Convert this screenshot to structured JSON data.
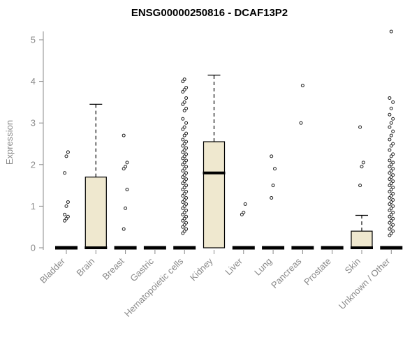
{
  "chart_data": {
    "type": "boxplot",
    "title": "ENSG00000250816 - DCAF13P2",
    "ylabel": "Expression",
    "ylim": [
      0,
      5.3
    ],
    "yticks": [
      0,
      1,
      2,
      3,
      4,
      5
    ],
    "box_fill": "#EFE8CF",
    "axis_color": "#888888",
    "label_color": "#8a8a8a",
    "categories": [
      "Bladder",
      "Brain",
      "Breast",
      "Gastric",
      "Hematopoietic cells",
      "Kidney",
      "Liver",
      "Lung",
      "Pancreas",
      "Prostate",
      "Skin",
      "Unknown / Other"
    ],
    "boxes": [
      {
        "label": "Bladder",
        "q1": 0,
        "median": 0,
        "q3": 0,
        "whisker_low": 0,
        "whisker_high": 0,
        "outliers": [
          0.65,
          0.7,
          0.75,
          0.8,
          1.0,
          1.1,
          1.8,
          2.2,
          2.3
        ]
      },
      {
        "label": "Brain",
        "q1": 0,
        "median": 0,
        "q3": 1.7,
        "whisker_low": 0,
        "whisker_high": 3.45,
        "outliers": []
      },
      {
        "label": "Breast",
        "q1": 0,
        "median": 0,
        "q3": 0,
        "whisker_low": 0,
        "whisker_high": 0,
        "outliers": [
          0.45,
          0.95,
          1.4,
          1.9,
          1.95,
          2.05,
          2.7
        ]
      },
      {
        "label": "Gastric",
        "q1": 0,
        "median": 0,
        "q3": 0,
        "whisker_low": 0,
        "whisker_high": 0,
        "outliers": []
      },
      {
        "label": "Hematopoietic cells",
        "q1": 0,
        "median": 0,
        "q3": 0,
        "whisker_low": 0,
        "whisker_high": 0,
        "outliers": [
          0.35,
          0.4,
          0.45,
          0.5,
          0.55,
          0.6,
          0.65,
          0.7,
          0.75,
          0.8,
          0.85,
          0.9,
          0.95,
          1.0,
          1.05,
          1.1,
          1.15,
          1.2,
          1.25,
          1.3,
          1.35,
          1.4,
          1.45,
          1.5,
          1.55,
          1.6,
          1.65,
          1.7,
          1.75,
          1.8,
          1.85,
          1.9,
          1.95,
          2.0,
          2.05,
          2.1,
          2.15,
          2.2,
          2.25,
          2.3,
          2.35,
          2.4,
          2.45,
          2.5,
          2.55,
          2.6,
          2.7,
          2.75,
          2.85,
          2.9,
          3.0,
          3.1,
          3.3,
          3.35,
          3.45,
          3.5,
          3.6,
          3.75,
          3.8,
          3.85,
          4.0,
          4.05
        ]
      },
      {
        "label": "Kidney",
        "q1": 0,
        "median": 1.8,
        "q3": 2.55,
        "whisker_low": 0,
        "whisker_high": 4.15,
        "outliers": []
      },
      {
        "label": "Liver",
        "q1": 0,
        "median": 0,
        "q3": 0,
        "whisker_low": 0,
        "whisker_high": 0,
        "outliers": [
          0.8,
          0.85,
          1.05
        ]
      },
      {
        "label": "Lung",
        "q1": 0,
        "median": 0,
        "q3": 0,
        "whisker_low": 0,
        "whisker_high": 0,
        "outliers": [
          1.2,
          1.5,
          1.9,
          2.2
        ]
      },
      {
        "label": "Pancreas",
        "q1": 0,
        "median": 0,
        "q3": 0,
        "whisker_low": 0,
        "whisker_high": 0,
        "outliers": [
          3.0,
          3.9
        ]
      },
      {
        "label": "Prostate",
        "q1": 0,
        "median": 0,
        "q3": 0,
        "whisker_low": 0,
        "whisker_high": 0,
        "outliers": []
      },
      {
        "label": "Skin",
        "q1": 0,
        "median": 0,
        "q3": 0.4,
        "whisker_low": 0,
        "whisker_high": 0.78,
        "outliers": [
          1.5,
          1.95,
          2.05,
          2.9
        ]
      },
      {
        "label": "Unknown / Other",
        "q1": 0,
        "median": 0,
        "q3": 0,
        "whisker_low": 0,
        "whisker_high": 0,
        "outliers": [
          0.3,
          0.35,
          0.4,
          0.45,
          0.5,
          0.55,
          0.6,
          0.65,
          0.7,
          0.75,
          0.8,
          0.85,
          0.9,
          0.95,
          1.0,
          1.05,
          1.1,
          1.15,
          1.2,
          1.25,
          1.3,
          1.35,
          1.4,
          1.45,
          1.5,
          1.55,
          1.6,
          1.65,
          1.7,
          1.75,
          1.8,
          1.85,
          1.9,
          1.95,
          2.0,
          2.05,
          2.1,
          2.2,
          2.25,
          2.35,
          2.45,
          2.5,
          2.6,
          2.7,
          2.8,
          2.9,
          3.0,
          3.1,
          3.2,
          3.35,
          3.5,
          3.6,
          5.2
        ]
      }
    ]
  }
}
